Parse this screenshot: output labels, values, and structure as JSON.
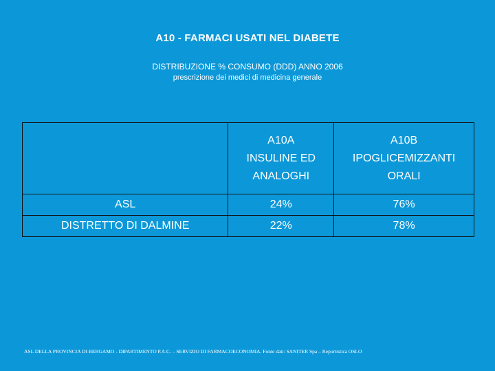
{
  "header": {
    "title": "A10 - FARMACI USATI NEL DIABETE",
    "subtitle": "DISTRIBUZIONE % CONSUMO (DDD) ANNO 2006",
    "note": "prescrizione dei medici di medicina generale"
  },
  "table": {
    "columns": [
      [
        "A10A",
        "INSULINE ED",
        "ANALOGHI"
      ],
      [
        "A10B",
        "IPOGLICEMIZZANTI",
        "ORALI"
      ]
    ],
    "rows": [
      [
        "ASL",
        "24%",
        "76%"
      ],
      [
        "DISTRETTO DI DALMINE",
        "22%",
        "78%"
      ]
    ]
  },
  "footer": "ASL DELLA PROVINCIA DI BERGAMO - DIPARTIMENTO P.A.C. – SERVIZIO DI FARMACOECONOMIA. Fonte dati: SANITER Spa – Reportistica OSLO"
}
